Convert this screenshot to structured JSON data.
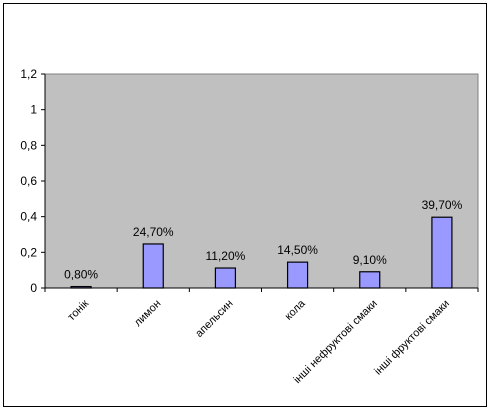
{
  "chart_data": {
    "type": "bar",
    "categories": [
      "тонік",
      "лимон",
      "апельсин",
      "кола",
      "інші нефруктові смаки",
      "інші фруктові смаки"
    ],
    "values": [
      0.008,
      0.247,
      0.112,
      0.145,
      0.091,
      0.397
    ],
    "data_labels": [
      "0,80%",
      "24,70%",
      "11,20%",
      "14,50%",
      "9,10%",
      "39,70%"
    ],
    "ylim": [
      0,
      1.2
    ],
    "yticks": [
      0,
      0.2,
      0.4,
      0.6,
      0.8,
      1,
      1.2
    ],
    "ytick_labels": [
      "0",
      "0,2",
      "0,4",
      "0,6",
      "0,8",
      "1",
      "1,2"
    ],
    "grid": false,
    "legend": "none",
    "colors": {
      "plot_background": "#c0c0c0",
      "bar_fill": "#9999ff",
      "bar_stroke": "#000000"
    }
  }
}
